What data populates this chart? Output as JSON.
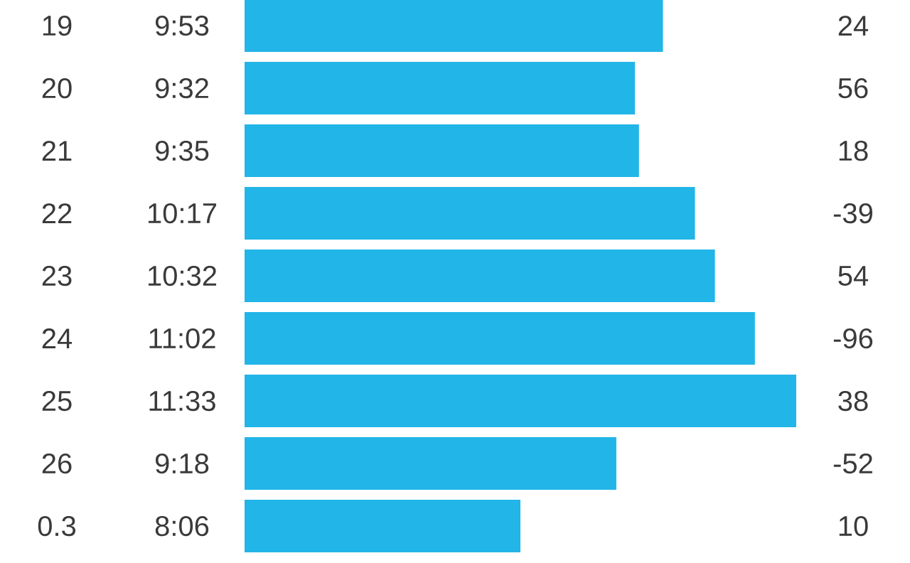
{
  "chart_data": {
    "type": "bar",
    "orientation": "horizontal",
    "color": "#22b5e8",
    "xlim": [
      4.65,
      11.55
    ],
    "categories": [
      "19",
      "20",
      "21",
      "22",
      "23",
      "24",
      "25",
      "26",
      "0.3"
    ],
    "values": [
      9.883,
      9.533,
      9.583,
      10.283,
      10.533,
      11.033,
      11.55,
      9.3,
      8.1
    ],
    "value_labels": [
      "9:53",
      "9:32",
      "9:35",
      "10:17",
      "10:32",
      "11:02",
      "11:33",
      "9:18",
      "8:06"
    ],
    "annotations": [
      "24",
      "56",
      "18",
      "-39",
      "54",
      "-96",
      "38",
      "-52",
      "10"
    ]
  }
}
